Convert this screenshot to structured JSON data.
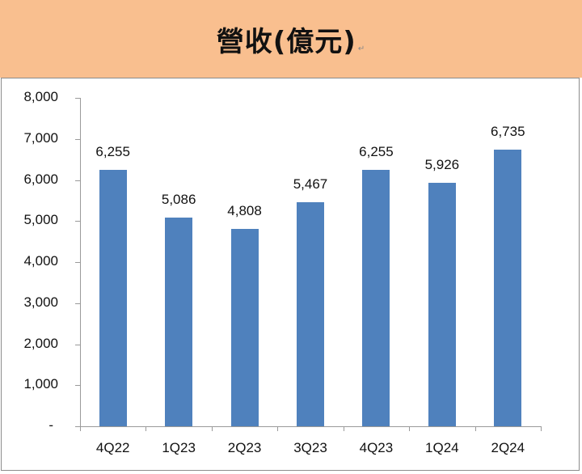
{
  "header": {
    "title": "營收(億元)",
    "paragraph_mark": "↵",
    "background_color": "#f9bf8f"
  },
  "chart_data": {
    "type": "bar",
    "title": "營收(億元)",
    "xlabel": "",
    "ylabel": "",
    "categories": [
      "4Q22",
      "1Q23",
      "2Q23",
      "3Q23",
      "4Q23",
      "1Q24",
      "2Q24"
    ],
    "values": [
      6255,
      5086,
      4808,
      5467,
      6255,
      5926,
      6735
    ],
    "value_labels": [
      "6,255",
      "5,086",
      "4,808",
      "5,467",
      "6,255",
      "5,926",
      "6,735"
    ],
    "ylim": [
      0,
      8000
    ],
    "yticks": [
      0,
      1000,
      2000,
      3000,
      4000,
      5000,
      6000,
      7000,
      8000
    ],
    "ytick_labels": [
      "-",
      "1,000",
      "2,000",
      "3,000",
      "4,000",
      "5,000",
      "6,000",
      "7,000",
      "8,000"
    ],
    "grid": false,
    "legend": null,
    "bar_color": "#4f81bd"
  }
}
